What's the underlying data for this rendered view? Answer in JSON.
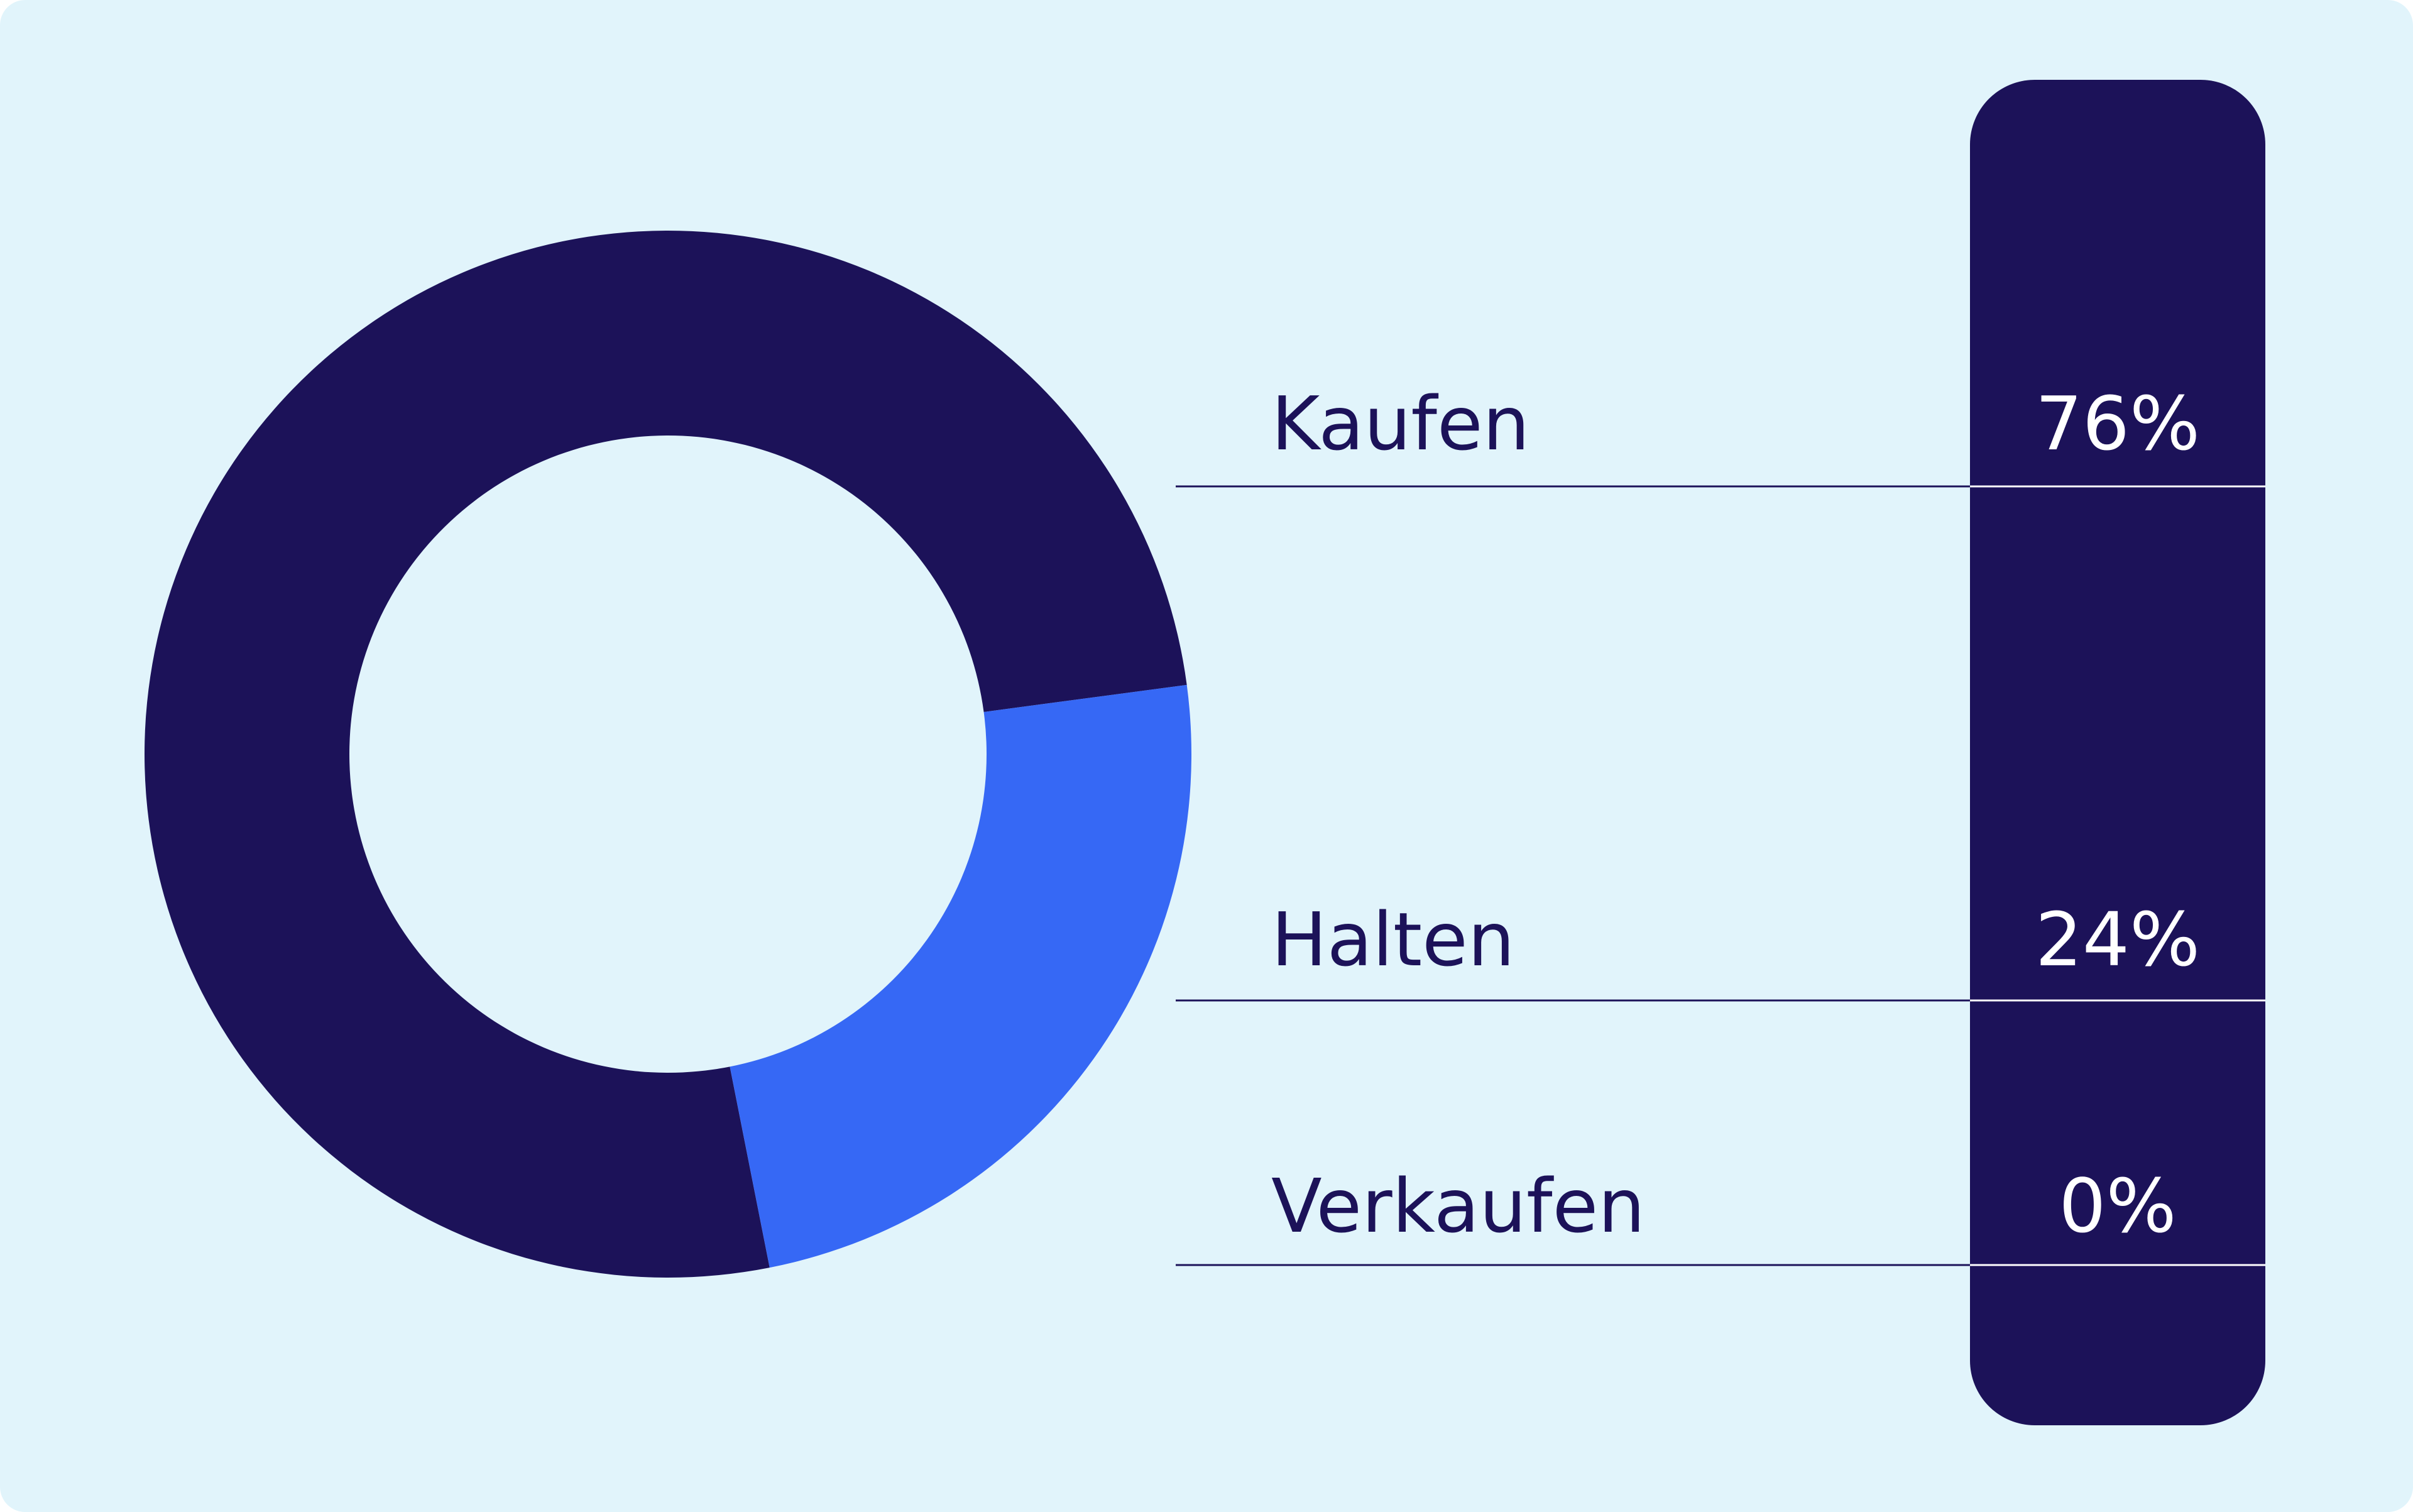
{
  "chart_data": {
    "type": "pie",
    "donut": true,
    "categories": [
      "Kaufen",
      "Halten",
      "Verkaufen"
    ],
    "values": [
      76,
      24,
      0
    ],
    "value_labels": [
      "76%",
      "24%",
      "0%"
    ],
    "colors": [
      "#1c1259",
      "#3668f5"
    ]
  }
}
